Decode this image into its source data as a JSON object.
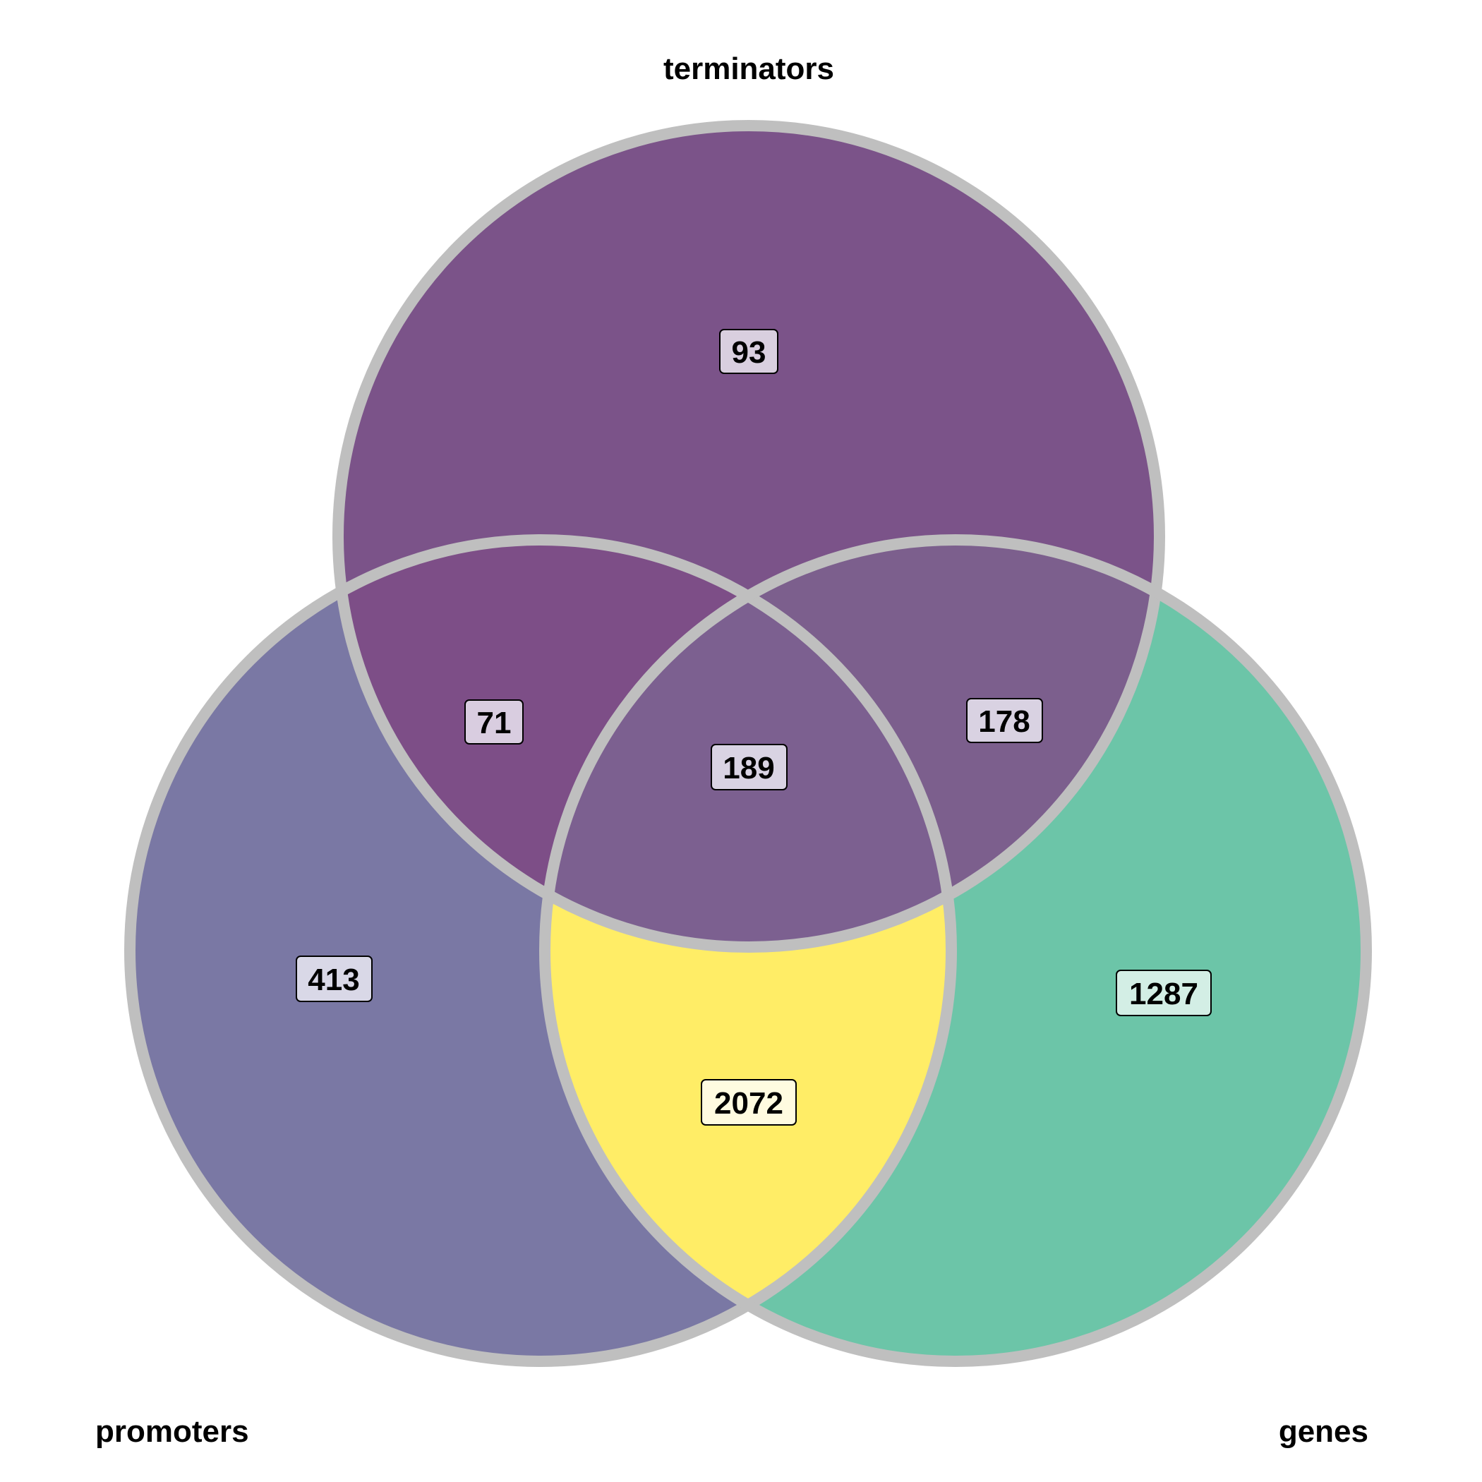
{
  "sets": {
    "terminators": {
      "label": "terminators"
    },
    "promoters": {
      "label": "promoters"
    },
    "genes": {
      "label": "genes"
    }
  },
  "regions": {
    "terminators_only": {
      "count": "93",
      "fill": "#7b5389",
      "box": "#d9cfdf"
    },
    "promoters_only": {
      "count": "413",
      "fill": "#7a78a4",
      "box": "#d9d8e7"
    },
    "genes_only": {
      "count": "1287",
      "fill": "#6cc5a8",
      "box": "#d3eee5"
    },
    "promoters_terminators": {
      "count": "71",
      "fill": "#7d4e87",
      "box": "#d9cde0"
    },
    "genes_terminators": {
      "count": "178",
      "fill": "#7c5f8d",
      "box": "#d9d2e2"
    },
    "all_three": {
      "count": "189",
      "fill": "#7c6090",
      "box": "#d9d3e3"
    },
    "promoters_genes": {
      "count": "2072",
      "fill": "#ffed66",
      "box": "#fffbe0"
    }
  },
  "ring_color": "#bfbfbf"
}
